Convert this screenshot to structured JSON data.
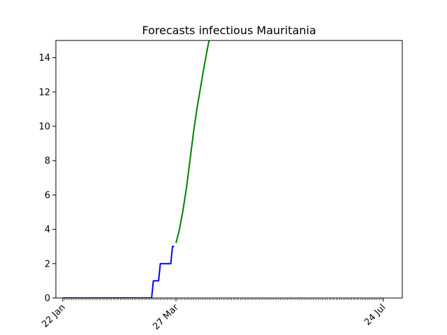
{
  "chart_data": {
    "type": "line",
    "title": "Forecasts infectious Mauritania",
    "xlabel": "",
    "ylabel": "",
    "x_tick_labels": [
      "22 Jan",
      "27 Mar",
      "24 Jul"
    ],
    "x_tick_dates": [
      "2020-01-22",
      "2020-03-27",
      "2020-07-24"
    ],
    "xlim": [
      "2020-01-18",
      "2020-08-04"
    ],
    "ylim": [
      0,
      15
    ],
    "y_ticks": [
      0,
      2,
      4,
      6,
      8,
      10,
      12,
      14
    ],
    "grid": false,
    "series": [
      {
        "color": "#0000ff",
        "style": "step",
        "x": [
          "2020-01-22",
          "2020-03-13",
          "2020-03-14",
          "2020-03-17",
          "2020-03-18",
          "2020-03-24",
          "2020-03-25",
          "2020-03-26"
        ],
        "values": [
          0,
          0,
          1,
          1,
          2,
          2,
          3,
          3
        ]
      },
      {
        "color": "#008000",
        "style": "line",
        "x": [
          "2020-03-27",
          "2020-03-29",
          "2020-03-31",
          "2020-04-02",
          "2020-04-04",
          "2020-04-06",
          "2020-04-08",
          "2020-04-10",
          "2020-04-12",
          "2020-04-14",
          "2020-04-15"
        ],
        "values": [
          3.2,
          4.0,
          5.1,
          6.4,
          8.0,
          9.6,
          11.0,
          12.2,
          13.4,
          14.5,
          15.0
        ]
      }
    ]
  }
}
